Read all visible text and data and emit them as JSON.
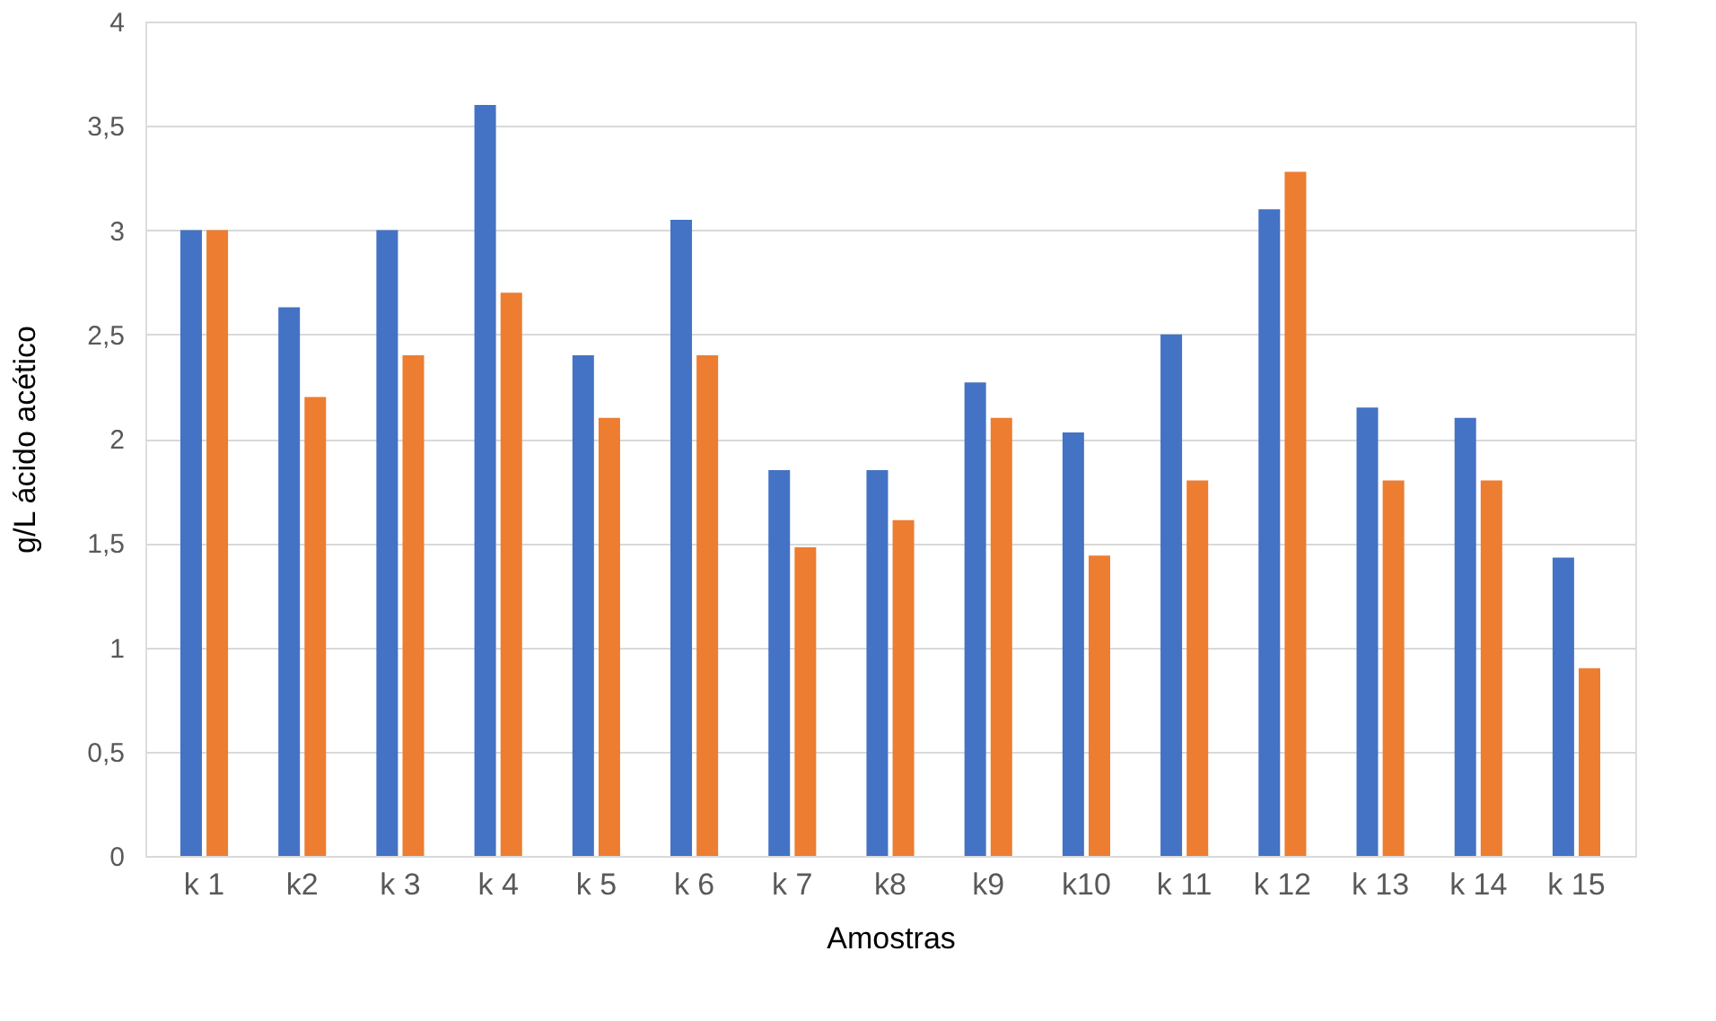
{
  "chart_data": {
    "type": "bar",
    "xlabel": "Amostras",
    "ylabel": "g/L ácido acético",
    "categories": [
      "k 1",
      "k2",
      "k 3",
      "k 4",
      "k 5",
      "k 6",
      "k 7",
      "k8",
      "k9",
      "k10",
      "k 11",
      "k 12",
      "k 13",
      "k 14",
      "k 15"
    ],
    "series": [
      {
        "color": "#4472c4",
        "values": [
          3.0,
          2.63,
          3.0,
          3.6,
          2.4,
          3.05,
          1.85,
          1.85,
          2.27,
          2.03,
          2.5,
          3.1,
          2.15,
          2.1,
          1.43
        ]
      },
      {
        "color": "#ed7d31",
        "values": [
          3.0,
          2.2,
          2.4,
          2.7,
          2.1,
          2.4,
          1.48,
          1.61,
          2.1,
          1.44,
          1.8,
          3.28,
          1.8,
          1.8,
          0.9
        ]
      }
    ],
    "ylim": [
      0,
      4
    ],
    "yticks": [
      0,
      {
        "value": 0.5,
        "label": "0,5"
      },
      1,
      {
        "value": 1.5,
        "label": "1,5"
      },
      2,
      {
        "value": 2.5,
        "label": "2,5"
      },
      3,
      {
        "value": 3.5,
        "label": "3,5"
      },
      4
    ],
    "grid": "y",
    "legend": false
  }
}
